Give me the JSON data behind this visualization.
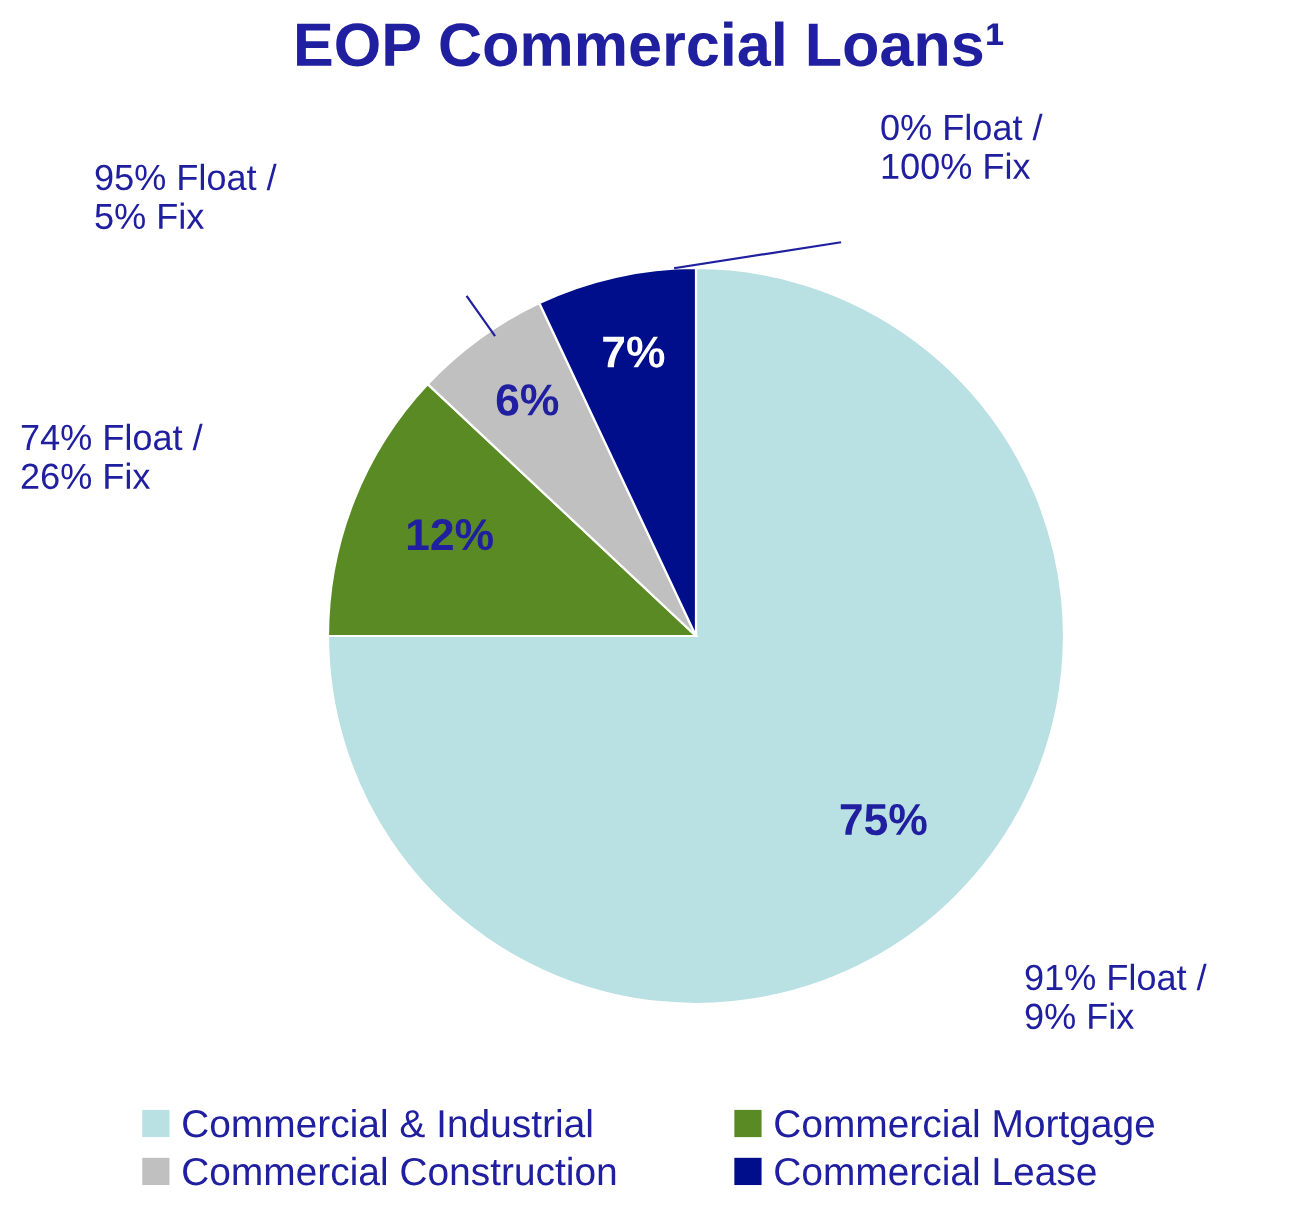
{
  "chart_data": {
    "type": "pie",
    "title": "EOP Commercial Loans¹",
    "categories": [
      "Commercial & Industrial",
      "Commercial Mortgage",
      "Commercial Construction",
      "Commercial Lease"
    ],
    "values": [
      75,
      12,
      6,
      7
    ],
    "colors": [
      "#b9e0e3",
      "#5a8a23",
      "#c0c0c0",
      "#000e8c"
    ],
    "value_labels": [
      "75%",
      "12%",
      "6%",
      "7%"
    ],
    "annotations": [
      "91% Float /\n9% Fix",
      "74% Float /\n26% Fix",
      "95% Float /\n5% Fix",
      "0% Float /\n100% Fix"
    ],
    "legend": "bottom"
  }
}
